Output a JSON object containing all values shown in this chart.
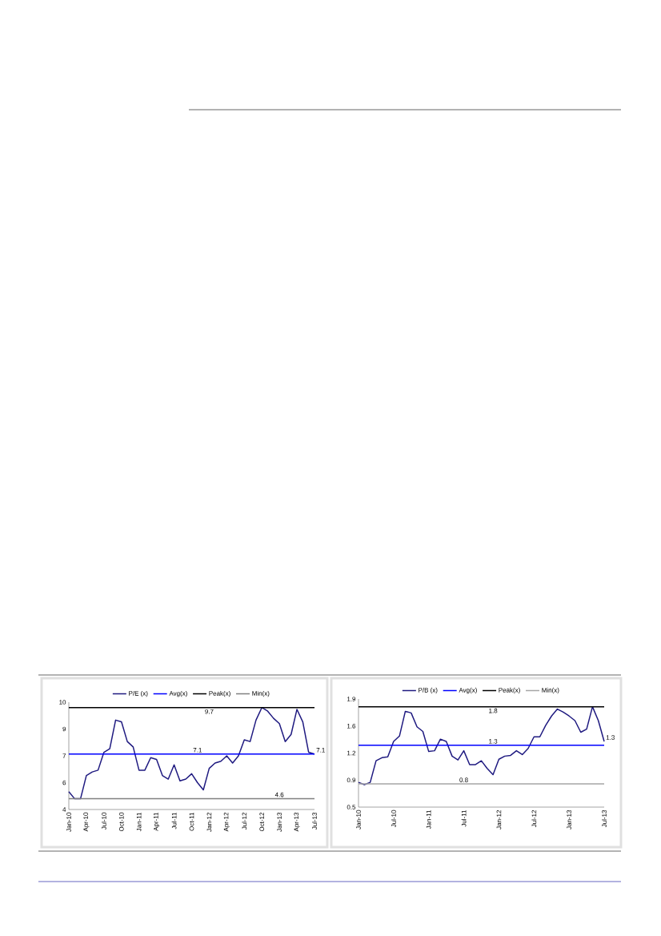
{
  "chart_data": [
    {
      "type": "line",
      "legend": "top",
      "categories": [
        "Jan-10",
        null,
        null,
        "Apr-10",
        null,
        null,
        "Jul-10",
        null,
        null,
        "Oct-10",
        null,
        null,
        "Jan-11",
        null,
        null,
        "Apr-11",
        null,
        null,
        "Jul-11",
        null,
        null,
        "Oct-11",
        null,
        null,
        "Jan-12",
        null,
        null,
        "Apr-12",
        null,
        null,
        "Jul-12",
        null,
        null,
        "Oct-12",
        null,
        null,
        "Jan-13",
        null,
        null,
        "Apr-13",
        null,
        null,
        "Jul-13"
      ],
      "ylim": [
        4,
        10
      ],
      "yticks": [
        4,
        {
          "value": 5.5,
          "label": "6"
        },
        7,
        {
          "value": 8.5,
          "label": "9"
        },
        10
      ],
      "series": [
        {
          "name": "P/E (x)",
          "color": "#1f1a80",
          "values": [
            5.0,
            4.6,
            4.6,
            5.9,
            6.1,
            6.2,
            7.2,
            7.4,
            9.0,
            8.9,
            7.8,
            7.5,
            6.2,
            6.2,
            6.9,
            6.8,
            5.9,
            5.7,
            6.5,
            5.6,
            5.7,
            6.0,
            5.5,
            5.1,
            6.3,
            6.6,
            6.7,
            7.0,
            6.6,
            7.0,
            7.9,
            7.8,
            9.0,
            9.7,
            9.5,
            9.1,
            8.8,
            7.8,
            8.2,
            9.6,
            8.9,
            7.2,
            7.1
          ],
          "value_labels": [
            null,
            null,
            null,
            null,
            null,
            null,
            null,
            null,
            null,
            null,
            null,
            null,
            null,
            null,
            null,
            null,
            null,
            null,
            null,
            null,
            null,
            null,
            null,
            null,
            null,
            null,
            null,
            null,
            null,
            null,
            null,
            null,
            null,
            null,
            null,
            null,
            null,
            null,
            null,
            null,
            null,
            null,
            "7.1"
          ]
        },
        {
          "name": "Avg(x)",
          "color": "#0000ff",
          "values": [
            7.1,
            7.1,
            7.1,
            7.1,
            7.1,
            7.1,
            7.1,
            7.1,
            7.1,
            7.1,
            7.1,
            7.1,
            7.1,
            7.1,
            7.1,
            7.1,
            7.1,
            7.1,
            7.1,
            7.1,
            7.1,
            7.1,
            7.1,
            7.1,
            7.1,
            7.1,
            7.1,
            7.1,
            7.1,
            7.1,
            7.1,
            7.1,
            7.1,
            7.1,
            7.1,
            7.1,
            7.1,
            7.1,
            7.1,
            7.1,
            7.1,
            7.1,
            7.1
          ],
          "value_labels": [
            null,
            null,
            null,
            null,
            null,
            null,
            null,
            null,
            null,
            null,
            null,
            null,
            null,
            null,
            null,
            null,
            null,
            null,
            null,
            null,
            null,
            null,
            "7.1",
            null,
            null,
            null,
            null,
            null,
            null,
            null,
            null,
            null,
            null,
            null,
            null,
            null,
            null,
            null,
            null,
            null,
            null,
            null,
            null
          ]
        },
        {
          "name": "Peak(x)",
          "color": "#000000",
          "values": [
            9.7,
            9.7,
            9.7,
            9.7,
            9.7,
            9.7,
            9.7,
            9.7,
            9.7,
            9.7,
            9.7,
            9.7,
            9.7,
            9.7,
            9.7,
            9.7,
            9.7,
            9.7,
            9.7,
            9.7,
            9.7,
            9.7,
            9.7,
            9.7,
            9.7,
            9.7,
            9.7,
            9.7,
            9.7,
            9.7,
            9.7,
            9.7,
            9.7,
            9.7,
            9.7,
            9.7,
            9.7,
            9.7,
            9.7,
            9.7,
            9.7,
            9.7,
            9.7
          ],
          "value_labels": [
            null,
            null,
            null,
            null,
            null,
            null,
            null,
            null,
            null,
            null,
            null,
            null,
            null,
            null,
            null,
            null,
            null,
            null,
            null,
            null,
            null,
            null,
            null,
            null,
            "9.7",
            null,
            null,
            null,
            null,
            null,
            null,
            null,
            null,
            null,
            null,
            null,
            null,
            null,
            null,
            null,
            null,
            null,
            null
          ]
        },
        {
          "name": "Min(x)",
          "color": "#808080",
          "values": [
            4.6,
            4.6,
            4.6,
            4.6,
            4.6,
            4.6,
            4.6,
            4.6,
            4.6,
            4.6,
            4.6,
            4.6,
            4.6,
            4.6,
            4.6,
            4.6,
            4.6,
            4.6,
            4.6,
            4.6,
            4.6,
            4.6,
            4.6,
            4.6,
            4.6,
            4.6,
            4.6,
            4.6,
            4.6,
            4.6,
            4.6,
            4.6,
            4.6,
            4.6,
            4.6,
            4.6,
            4.6,
            4.6,
            4.6,
            4.6,
            4.6,
            4.6,
            4.6
          ],
          "value_labels": [
            null,
            null,
            null,
            null,
            null,
            null,
            null,
            null,
            null,
            null,
            null,
            null,
            null,
            null,
            null,
            null,
            null,
            null,
            null,
            null,
            null,
            null,
            null,
            null,
            null,
            null,
            null,
            null,
            null,
            null,
            null,
            null,
            null,
            null,
            null,
            null,
            "4.6",
            null,
            null,
            null,
            null,
            null,
            null
          ]
        }
      ]
    },
    {
      "type": "line",
      "legend": "top",
      "categories": [
        "Jan-10",
        null,
        null,
        null,
        null,
        null,
        "Jul-10",
        null,
        null,
        null,
        null,
        null,
        "Jan-11",
        null,
        null,
        null,
        null,
        null,
        "Jul-11",
        null,
        null,
        null,
        null,
        null,
        "Jan-12",
        null,
        null,
        null,
        null,
        null,
        "Jul-12",
        null,
        null,
        null,
        null,
        null,
        "Jan-13",
        null,
        null,
        null,
        null,
        null,
        "Jul-13"
      ],
      "ylim": [
        0.5,
        1.9
      ],
      "yticks": [
        0.5,
        {
          "value": 0.85,
          "label": "0.9"
        },
        1.2,
        {
          "value": 1.55,
          "label": "1.6"
        },
        1.9
      ],
      "series": [
        {
          "name": "P/B (x)",
          "color": "#1f1a80",
          "values": [
            0.82,
            0.79,
            0.82,
            1.1,
            1.14,
            1.15,
            1.35,
            1.42,
            1.74,
            1.72,
            1.54,
            1.48,
            1.22,
            1.23,
            1.38,
            1.35,
            1.16,
            1.11,
            1.23,
            1.05,
            1.05,
            1.1,
            1.0,
            0.92,
            1.12,
            1.16,
            1.17,
            1.23,
            1.18,
            1.26,
            1.41,
            1.41,
            1.56,
            1.68,
            1.77,
            1.73,
            1.68,
            1.62,
            1.47,
            1.51,
            1.8,
            1.62,
            1.35
          ],
          "value_labels": [
            null,
            null,
            null,
            null,
            null,
            null,
            null,
            null,
            null,
            null,
            null,
            null,
            null,
            null,
            null,
            null,
            null,
            null,
            null,
            null,
            null,
            null,
            null,
            null,
            null,
            null,
            null,
            null,
            null,
            null,
            null,
            null,
            null,
            null,
            null,
            null,
            null,
            null,
            null,
            null,
            null,
            null,
            "1.3"
          ]
        },
        {
          "name": "Avg(x)",
          "color": "#0000ff",
          "values": [
            1.3,
            1.3,
            1.3,
            1.3,
            1.3,
            1.3,
            1.3,
            1.3,
            1.3,
            1.3,
            1.3,
            1.3,
            1.3,
            1.3,
            1.3,
            1.3,
            1.3,
            1.3,
            1.3,
            1.3,
            1.3,
            1.3,
            1.3,
            1.3,
            1.3,
            1.3,
            1.3,
            1.3,
            1.3,
            1.3,
            1.3,
            1.3,
            1.3,
            1.3,
            1.3,
            1.3,
            1.3,
            1.3,
            1.3,
            1.3,
            1.3,
            1.3,
            1.3
          ],
          "value_labels": [
            null,
            null,
            null,
            null,
            null,
            null,
            null,
            null,
            null,
            null,
            null,
            null,
            null,
            null,
            null,
            null,
            null,
            null,
            null,
            null,
            null,
            null,
            null,
            "1.3",
            null,
            null,
            null,
            null,
            null,
            null,
            null,
            null,
            null,
            null,
            null,
            null,
            null,
            null,
            null,
            null,
            null,
            null,
            null
          ]
        },
        {
          "name": "Peak(x)",
          "color": "#000000",
          "values": [
            1.8,
            1.8,
            1.8,
            1.8,
            1.8,
            1.8,
            1.8,
            1.8,
            1.8,
            1.8,
            1.8,
            1.8,
            1.8,
            1.8,
            1.8,
            1.8,
            1.8,
            1.8,
            1.8,
            1.8,
            1.8,
            1.8,
            1.8,
            1.8,
            1.8,
            1.8,
            1.8,
            1.8,
            1.8,
            1.8,
            1.8,
            1.8,
            1.8,
            1.8,
            1.8,
            1.8,
            1.8,
            1.8,
            1.8,
            1.8,
            1.8,
            1.8,
            1.8
          ],
          "value_labels": [
            null,
            null,
            null,
            null,
            null,
            null,
            null,
            null,
            null,
            null,
            null,
            null,
            null,
            null,
            null,
            null,
            null,
            null,
            null,
            null,
            null,
            null,
            null,
            "1.8",
            null,
            null,
            null,
            null,
            null,
            null,
            null,
            null,
            null,
            null,
            null,
            null,
            null,
            null,
            null,
            null,
            null,
            null,
            null
          ]
        },
        {
          "name": "Min(x)",
          "color": "#a6a6a6",
          "values": [
            0.8,
            0.8,
            0.8,
            0.8,
            0.8,
            0.8,
            0.8,
            0.8,
            0.8,
            0.8,
            0.8,
            0.8,
            0.8,
            0.8,
            0.8,
            0.8,
            0.8,
            0.8,
            0.8,
            0.8,
            0.8,
            0.8,
            0.8,
            0.8,
            0.8,
            0.8,
            0.8,
            0.8,
            0.8,
            0.8,
            0.8,
            0.8,
            0.8,
            0.8,
            0.8,
            0.8,
            0.8,
            0.8,
            0.8,
            0.8,
            0.8,
            0.8,
            0.8
          ],
          "value_labels": [
            null,
            null,
            null,
            null,
            null,
            null,
            null,
            null,
            null,
            null,
            null,
            null,
            null,
            null,
            null,
            null,
            null,
            null,
            "0.8",
            null,
            null,
            null,
            null,
            null,
            null,
            null,
            null,
            null,
            null,
            null,
            null,
            null,
            null,
            null,
            null,
            null,
            null,
            null,
            null,
            null,
            null,
            null,
            null
          ]
        }
      ]
    }
  ]
}
